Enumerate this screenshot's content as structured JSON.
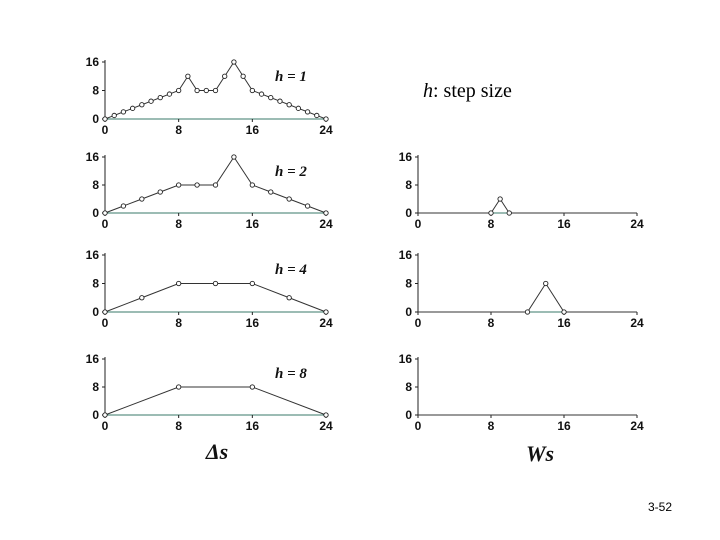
{
  "note": {
    "symbol": "h",
    "text": ": step size"
  },
  "page_number": "3-52",
  "column_labels": {
    "left": "Δs",
    "right": "Ws"
  },
  "chart_data": [
    {
      "type": "line",
      "column": "left",
      "row": 0,
      "panel_label": "h = 1",
      "xlim": [
        0,
        24
      ],
      "ylim": [
        0,
        16
      ],
      "xticks": [
        0,
        8,
        16,
        24
      ],
      "yticks": [
        0,
        8,
        16
      ],
      "series": [
        {
          "x": [
            0,
            1,
            2,
            3,
            4,
            5,
            6,
            7,
            8,
            9,
            10,
            11,
            12,
            13,
            14,
            15,
            16,
            17,
            18,
            19,
            20,
            21,
            22,
            23,
            24
          ],
          "y": [
            0,
            1,
            2,
            3,
            4,
            5,
            6,
            7,
            8,
            12,
            8,
            8,
            8,
            12,
            16,
            12,
            8,
            7,
            6,
            5,
            4,
            3,
            2,
            1,
            0
          ]
        }
      ]
    },
    {
      "type": "line",
      "column": "left",
      "row": 1,
      "panel_label": "h = 2",
      "xlim": [
        0,
        24
      ],
      "ylim": [
        0,
        16
      ],
      "xticks": [
        0,
        8,
        16,
        24
      ],
      "yticks": [
        0,
        8,
        16
      ],
      "series": [
        {
          "x": [
            0,
            2,
            4,
            6,
            8,
            10,
            12,
            14,
            16,
            18,
            20,
            22,
            24
          ],
          "y": [
            0,
            2,
            4,
            6,
            8,
            8,
            8,
            16,
            8,
            6,
            4,
            2,
            0
          ]
        }
      ]
    },
    {
      "type": "line",
      "column": "right",
      "row": 1,
      "panel_label": "",
      "xlim": [
        0,
        24
      ],
      "ylim": [
        0,
        16
      ],
      "xticks": [
        0,
        8,
        16,
        24
      ],
      "yticks": [
        0,
        8,
        16
      ],
      "series": [
        {
          "x": [
            0,
            8,
            9,
            10,
            24
          ],
          "y": [
            0,
            0,
            4,
            0,
            0
          ],
          "markers": [
            8,
            9,
            10
          ]
        }
      ]
    },
    {
      "type": "line",
      "column": "left",
      "row": 2,
      "panel_label": "h = 4",
      "xlim": [
        0,
        24
      ],
      "ylim": [
        0,
        16
      ],
      "xticks": [
        0,
        8,
        16,
        24
      ],
      "yticks": [
        0,
        8,
        16
      ],
      "series": [
        {
          "x": [
            0,
            4,
            8,
            12,
            16,
            20,
            24
          ],
          "y": [
            0,
            4,
            8,
            8,
            8,
            4,
            0
          ]
        }
      ]
    },
    {
      "type": "line",
      "column": "right",
      "row": 2,
      "panel_label": "",
      "xlim": [
        0,
        24
      ],
      "ylim": [
        0,
        16
      ],
      "xticks": [
        0,
        8,
        16,
        24
      ],
      "yticks": [
        0,
        8,
        16
      ],
      "series": [
        {
          "x": [
            0,
            12,
            14,
            16,
            24
          ],
          "y": [
            0,
            0,
            8,
            0,
            0
          ],
          "markers": [
            12,
            14,
            16
          ]
        }
      ]
    },
    {
      "type": "line",
      "column": "left",
      "row": 3,
      "panel_label": "h = 8",
      "xlim": [
        0,
        24
      ],
      "ylim": [
        0,
        16
      ],
      "xticks": [
        0,
        8,
        16,
        24
      ],
      "yticks": [
        0,
        8,
        16
      ],
      "series": [
        {
          "x": [
            0,
            8,
            16,
            24
          ],
          "y": [
            0,
            8,
            8,
            0
          ]
        }
      ]
    },
    {
      "type": "line",
      "column": "right",
      "row": 3,
      "panel_label": "",
      "xlim": [
        0,
        24
      ],
      "ylim": [
        0,
        16
      ],
      "xticks": [
        0,
        8,
        16,
        24
      ],
      "yticks": [
        0,
        8,
        16
      ],
      "series": [
        {
          "x": [
            0,
            24
          ],
          "y": [
            0,
            0
          ],
          "markers": []
        }
      ]
    }
  ]
}
